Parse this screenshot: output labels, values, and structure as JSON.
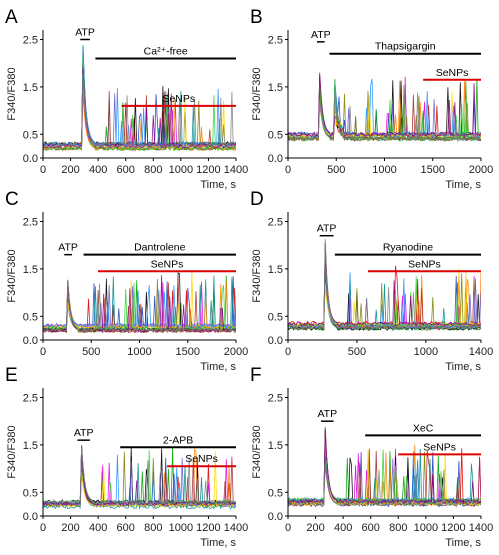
{
  "figure": {
    "panels": [
      {
        "letter": "A",
        "title": "Ca²⁺-free",
        "ylabel": "F340/F380",
        "xlabel": "Time, s"
      },
      {
        "letter": "B",
        "title": "Thapsigargin",
        "ylabel": "F340/F380",
        "xlabel": "Time, s"
      },
      {
        "letter": "C",
        "title": "Dantrolene",
        "ylabel": "F340/F380",
        "xlabel": "Time, s"
      },
      {
        "letter": "D",
        "title": "Ryanodine",
        "ylabel": "F340/F380",
        "xlabel": "Time, s"
      },
      {
        "letter": "E",
        "title": "2-APB",
        "ylabel": "F340/F380",
        "xlabel": "Time, s"
      },
      {
        "letter": "F",
        "title": "XeC",
        "ylabel": "F340/F380",
        "xlabel": "Time, s"
      }
    ]
  },
  "chart_data": [
    {
      "type": "line",
      "panel": "A",
      "xlabel": "Time, s",
      "ylabel": "F340/F380",
      "xlim": [
        0,
        1400
      ],
      "ylim": [
        0,
        2.7
      ],
      "xticks": [
        0,
        200,
        400,
        600,
        800,
        1000,
        1200,
        1400
      ],
      "yticks": [
        0.0,
        0.5,
        1.5,
        2.5
      ],
      "baseline": 0.25,
      "spike": {
        "x": 290,
        "y": 2.45
      },
      "annotations": [
        {
          "label": "ATP",
          "x_start": 270,
          "x_end": 340,
          "y": 2.5,
          "color": "#000000"
        },
        {
          "label": "Ca²⁺-free",
          "x_start": 380,
          "x_end": 1400,
          "y": 2.1,
          "color": "#000000"
        },
        {
          "label": "SeNPs",
          "x_start": 570,
          "x_end": 1400,
          "y": 1.1,
          "color": "#dd0000"
        }
      ]
    },
    {
      "type": "line",
      "panel": "B",
      "xlabel": "Time, s",
      "ylabel": "F340/F380",
      "xlim": [
        0,
        2000
      ],
      "ylim": [
        0,
        2.7
      ],
      "xticks": [
        0,
        500,
        1000,
        1500,
        2000
      ],
      "yticks": [
        0.0,
        0.5,
        1.5,
        2.5
      ],
      "baseline": 0.45,
      "spike": {
        "x": 320,
        "y": 2.3
      },
      "second_peak": {
        "x": 480,
        "y": 1.85
      },
      "annotations": [
        {
          "label": "ATP",
          "x_start": 300,
          "x_end": 380,
          "y": 2.45,
          "color": "#000000"
        },
        {
          "label": "Thapsigargin",
          "x_start": 430,
          "x_end": 2000,
          "y": 2.2,
          "color": "#000000"
        },
        {
          "label": "SeNPs",
          "x_start": 1400,
          "x_end": 2000,
          "y": 1.65,
          "color": "#dd0000"
        }
      ]
    },
    {
      "type": "line",
      "panel": "C",
      "xlabel": "Time, s",
      "ylabel": "F340/F380",
      "xlim": [
        0,
        2000
      ],
      "ylim": [
        0,
        2.7
      ],
      "xticks": [
        0,
        500,
        1000,
        1500,
        2000
      ],
      "yticks": [
        0.0,
        0.5,
        1.5,
        2.5
      ],
      "baseline": 0.25,
      "spike": {
        "x": 250,
        "y": 1.6
      },
      "annotations": [
        {
          "label": "ATP",
          "x_start": 220,
          "x_end": 300,
          "y": 1.8,
          "color": "#000000"
        },
        {
          "label": "Dantrolene",
          "x_start": 420,
          "x_end": 2000,
          "y": 1.8,
          "color": "#000000"
        },
        {
          "label": "SeNPs",
          "x_start": 570,
          "x_end": 2000,
          "y": 1.45,
          "color": "#dd0000"
        }
      ]
    },
    {
      "type": "line",
      "panel": "D",
      "xlabel": "Time, s",
      "ylabel": "F340/F380",
      "xlim": [
        0,
        1400
      ],
      "ylim": [
        0,
        2.7
      ],
      "xticks": [
        0,
        500,
        1000,
        1400
      ],
      "yticks": [
        0.0,
        0.5,
        1.5,
        2.5
      ],
      "baseline": 0.3,
      "spike": {
        "x": 270,
        "y": 2.15
      },
      "annotations": [
        {
          "label": "ATP",
          "x_start": 230,
          "x_end": 330,
          "y": 2.2,
          "color": "#000000"
        },
        {
          "label": "Ryanodine",
          "x_start": 340,
          "x_end": 1400,
          "y": 1.8,
          "color": "#000000"
        },
        {
          "label": "SeNPs",
          "x_start": 580,
          "x_end": 1400,
          "y": 1.45,
          "color": "#dd0000"
        }
      ]
    },
    {
      "type": "line",
      "panel": "E",
      "xlabel": "Time, s",
      "ylabel": "F340/F380",
      "xlim": [
        0,
        1400
      ],
      "ylim": [
        0,
        2.7
      ],
      "xticks": [
        0,
        200,
        400,
        600,
        800,
        1000,
        1200,
        1400
      ],
      "yticks": [
        0.0,
        0.5,
        1.5,
        2.5
      ],
      "baseline": 0.25,
      "spike": {
        "x": 280,
        "y": 1.5
      },
      "annotations": [
        {
          "label": "ATP",
          "x_start": 250,
          "x_end": 340,
          "y": 1.6,
          "color": "#000000"
        },
        {
          "label": "2-APB",
          "x_start": 560,
          "x_end": 1400,
          "y": 1.45,
          "color": "#000000"
        },
        {
          "label": "SeNPs",
          "x_start": 900,
          "x_end": 1400,
          "y": 1.05,
          "color": "#dd0000"
        }
      ]
    },
    {
      "type": "line",
      "panel": "F",
      "xlabel": "Time, s",
      "ylabel": "F340/F380",
      "xlim": [
        0,
        1400
      ],
      "ylim": [
        0,
        2.7
      ],
      "xticks": [
        0,
        200,
        400,
        600,
        800,
        1000,
        1200,
        1400
      ],
      "yticks": [
        0.0,
        0.5,
        1.5,
        2.5
      ],
      "baseline": 0.3,
      "spike": {
        "x": 270,
        "y": 1.9
      },
      "annotations": [
        {
          "label": "ATP",
          "x_start": 240,
          "x_end": 330,
          "y": 2.0,
          "color": "#000000"
        },
        {
          "label": "XeC",
          "x_start": 560,
          "x_end": 1400,
          "y": 1.7,
          "color": "#000000"
        },
        {
          "label": "SeNPs",
          "x_start": 800,
          "x_end": 1400,
          "y": 1.3,
          "color": "#dd0000"
        }
      ]
    }
  ],
  "colors": {
    "axis": "#000000",
    "text": "#222222",
    "senps_bar": "#dd0000",
    "traces": [
      "#1f3fbf",
      "#dd0000",
      "#00a000",
      "#e600e6",
      "#008b8b",
      "#000000",
      "#ff7f00",
      "#7f7f00",
      "#6a5acd",
      "#a52a2a",
      "#ffd700",
      "#1e90ff",
      "#32cd32",
      "#8b008b",
      "#808080"
    ]
  }
}
